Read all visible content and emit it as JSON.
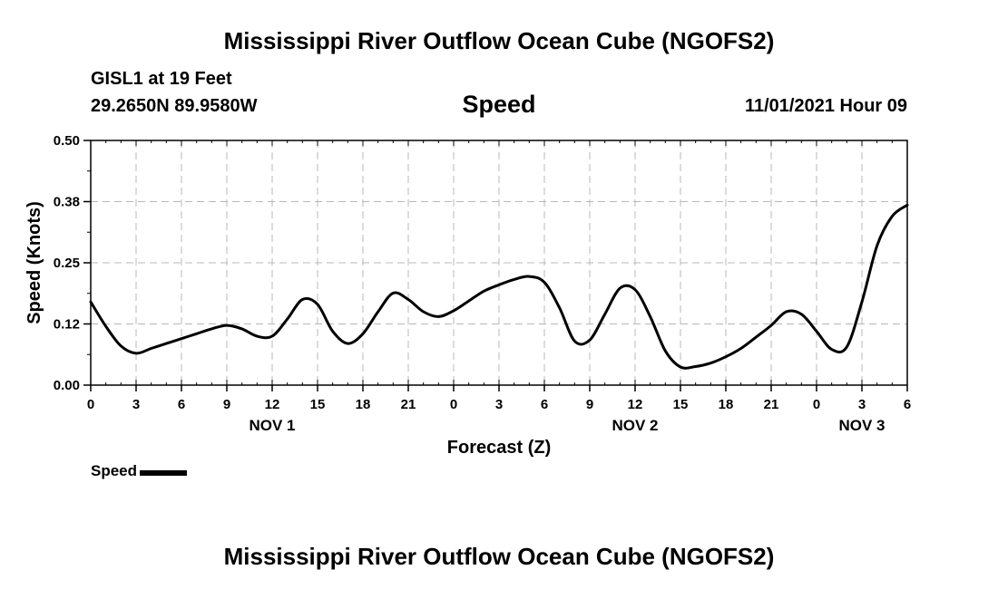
{
  "header": {
    "title": "Mississippi River Outflow Ocean Cube (NGOFS2)",
    "station": "GISL1 at 19 Feet",
    "coords": "29.2650N  89.9580W",
    "variable": "Speed",
    "datetime": "11/01/2021 Hour 09"
  },
  "footer": {
    "title": "Mississippi River Outflow Ocean Cube (NGOFS2)"
  },
  "chart_data": {
    "type": "line",
    "title": "Speed",
    "xlabel": "Forecast (Z)",
    "ylabel": "Speed (Knots)",
    "xlim": [
      0,
      54
    ],
    "ylim": [
      0,
      0.5
    ],
    "yticks": [
      "0.00",
      "0.12",
      "0.25",
      "0.38",
      "0.50"
    ],
    "ytick_values": [
      0,
      0.125,
      0.25,
      0.375,
      0.5
    ],
    "xtick_labels": [
      "0",
      "3",
      "6",
      "9",
      "12",
      "15",
      "18",
      "21",
      "0",
      "3",
      "6",
      "9",
      "12",
      "15",
      "18",
      "21",
      "0",
      "3",
      "6"
    ],
    "day_labels": [
      {
        "label": "NOV 1",
        "hour": 12
      },
      {
        "label": "NOV 2",
        "hour": 36
      },
      {
        "label": "NOV 3",
        "hour": 51
      }
    ],
    "grid": true,
    "legend": {
      "label": "Speed",
      "position": "bottom-left"
    },
    "series": [
      {
        "name": "Speed",
        "color": "#000000",
        "x": [
          0,
          1,
          2,
          3,
          4,
          5,
          6,
          7,
          8,
          9,
          10,
          11,
          12,
          13,
          14,
          15,
          16,
          17,
          18,
          19,
          20,
          21,
          22,
          23,
          24,
          25,
          26,
          27,
          28,
          29,
          30,
          31,
          32,
          33,
          34,
          35,
          36,
          37,
          38,
          39,
          40,
          41,
          42,
          43,
          44,
          45,
          46,
          47,
          48,
          49,
          50,
          51,
          52,
          53,
          54
        ],
        "values": [
          0.17,
          0.12,
          0.08,
          0.065,
          0.075,
          0.085,
          0.095,
          0.105,
          0.115,
          0.122,
          0.115,
          0.1,
          0.1,
          0.135,
          0.175,
          0.165,
          0.11,
          0.085,
          0.105,
          0.15,
          0.188,
          0.175,
          0.15,
          0.14,
          0.152,
          0.172,
          0.192,
          0.205,
          0.216,
          0.222,
          0.21,
          0.158,
          0.09,
          0.092,
          0.145,
          0.198,
          0.195,
          0.14,
          0.07,
          0.037,
          0.038,
          0.045,
          0.058,
          0.075,
          0.098,
          0.122,
          0.15,
          0.145,
          0.11,
          0.073,
          0.078,
          0.17,
          0.285,
          0.345,
          0.368
        ]
      }
    ]
  }
}
